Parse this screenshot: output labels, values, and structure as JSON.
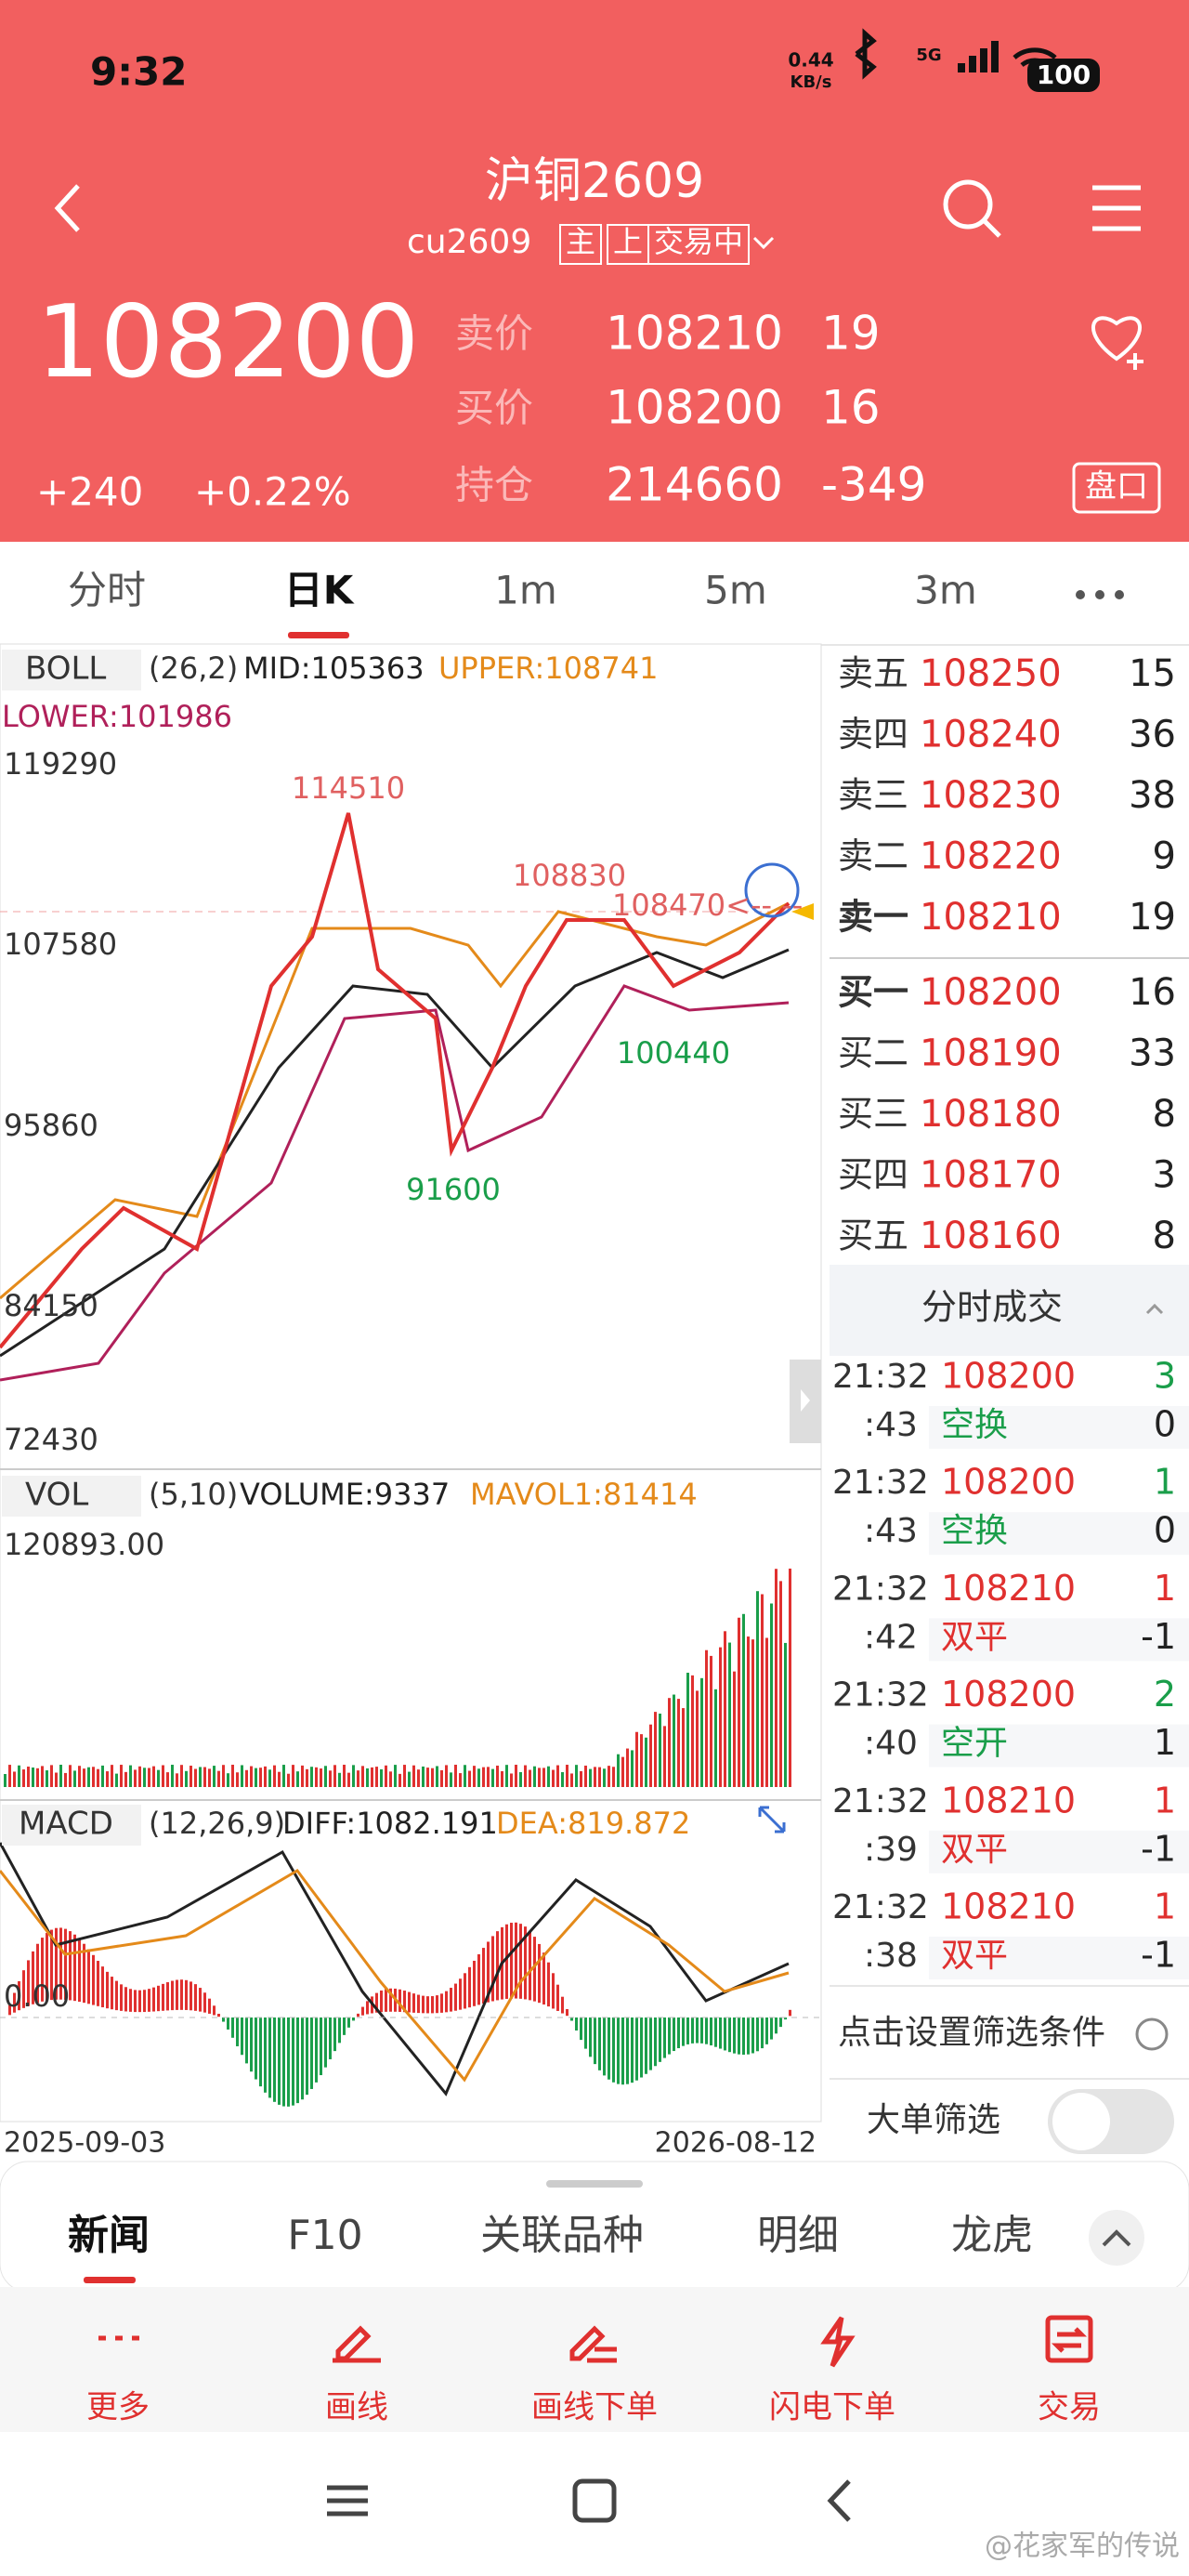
{
  "status_bar": {
    "time": "9:32",
    "net_speed": "0.44",
    "net_unit": "KB/s",
    "signal": "5G",
    "battery": "100"
  },
  "header": {
    "title": "沪铜2609",
    "code": "cu2609",
    "tags": [
      "主",
      "上",
      "交易中"
    ],
    "price": "108200",
    "change": "+240",
    "change_pct": "+0.22%",
    "quotes": [
      {
        "label": "卖价",
        "price": "108210",
        "qty": "19"
      },
      {
        "label": "买价",
        "price": "108200",
        "qty": "16"
      },
      {
        "label": "持仓",
        "price": "214660",
        "qty": "-349"
      }
    ],
    "panel_button": "盘口"
  },
  "tabs": [
    "分时",
    "日K",
    "1m",
    "5m",
    "3m"
  ],
  "kline": {
    "boll": {
      "name": "BOLL",
      "params": "(26,2)",
      "mid": "MID:105363",
      "upper": "UPPER:108741",
      "lower": "LOWER:101986"
    },
    "price_axis": [
      "119290",
      "107580",
      "95860",
      "84150",
      "72430"
    ],
    "annotations": [
      "114510",
      "108830",
      "108470<-- --",
      "91600",
      "100440"
    ],
    "vol": {
      "name": "VOL",
      "params": "(5,10)",
      "volume": "VOLUME:9337",
      "mavol": "MAVOL1:81414",
      "axis": "120893.00"
    },
    "macd": {
      "name": "MACD",
      "params": "(12,26,9)",
      "diff": "DIFF:1082.191",
      "dea": "DEA:819.872",
      "axis": "0.00"
    },
    "dates": [
      "2025-09-03",
      "2026-08-12"
    ]
  },
  "order_book": {
    "asks": [
      {
        "label": "卖五",
        "price": "108250",
        "qty": "15"
      },
      {
        "label": "卖四",
        "price": "108240",
        "qty": "36"
      },
      {
        "label": "卖三",
        "price": "108230",
        "qty": "38"
      },
      {
        "label": "卖二",
        "price": "108220",
        "qty": "9"
      },
      {
        "label": "卖一",
        "price": "108210",
        "qty": "19"
      }
    ],
    "bids": [
      {
        "label": "买一",
        "price": "108200",
        "qty": "16"
      },
      {
        "label": "买二",
        "price": "108190",
        "qty": "33"
      },
      {
        "label": "买三",
        "price": "108180",
        "qty": "8"
      },
      {
        "label": "买四",
        "price": "108170",
        "qty": "3"
      },
      {
        "label": "买五",
        "price": "108160",
        "qty": "8"
      }
    ]
  },
  "trades": {
    "title": "分时成交",
    "rows": [
      {
        "time": "21:32",
        "sec": ":43",
        "price": "108200",
        "type": "空换",
        "vol": "3",
        "oi": "0",
        "type_color": "#1a9e4a",
        "vol_color": "#1a9e4a"
      },
      {
        "time": "21:32",
        "sec": ":43",
        "price": "108200",
        "type": "空换",
        "vol": "1",
        "oi": "0",
        "type_color": "#1a9e4a",
        "vol_color": "#1a9e4a"
      },
      {
        "time": "21:32",
        "sec": ":42",
        "price": "108210",
        "type": "双平",
        "vol": "1",
        "oi": "-1",
        "type_color": "#e0302f",
        "vol_color": "#e0302f"
      },
      {
        "time": "21:32",
        "sec": ":40",
        "price": "108200",
        "type": "空开",
        "vol": "2",
        "oi": "1",
        "type_color": "#1a9e4a",
        "vol_color": "#1a9e4a"
      },
      {
        "time": "21:32",
        "sec": ":39",
        "price": "108210",
        "type": "双平",
        "vol": "1",
        "oi": "-1",
        "type_color": "#e0302f",
        "vol_color": "#e0302f"
      },
      {
        "time": "21:32",
        "sec": ":38",
        "price": "108210",
        "type": "双平",
        "vol": "1",
        "oi": "-1",
        "type_color": "#e0302f",
        "vol_color": "#e0302f"
      }
    ]
  },
  "filter": "点击设置筛选条件",
  "big_filter": "大单筛选",
  "bottom_tabs": [
    "新闻",
    "F10",
    "关联品种",
    "明细",
    "龙虎"
  ],
  "toolbar": [
    "更多",
    "画线",
    "画线下单",
    "闪电下单",
    "交易"
  ],
  "watermark": "@花家军的传说"
}
